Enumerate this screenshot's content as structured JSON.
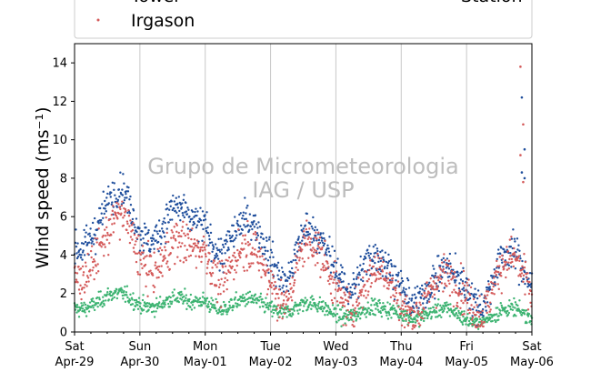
{
  "chart_data": {
    "type": "scatter",
    "title": "",
    "xlabel": "",
    "ylabel": "Wind speed (ms⁻¹)",
    "ylim": [
      0,
      15
    ],
    "xlim": [
      "2017-04-29",
      "2017-05-06"
    ],
    "x_tick_labels": [
      {
        "day": "Sat",
        "date": "Apr-29"
      },
      {
        "day": "Sun",
        "date": "Apr-30"
      },
      {
        "day": "Mon",
        "date": "May-01"
      },
      {
        "day": "Tue",
        "date": "May-02"
      },
      {
        "day": "Wed",
        "date": "May-03"
      },
      {
        "day": "Thu",
        "date": "May-04"
      },
      {
        "day": "Fri",
        "date": "May-05"
      },
      {
        "day": "Sat",
        "date": "May-06"
      }
    ],
    "y_ticks": [
      0,
      2,
      4,
      6,
      8,
      10,
      12,
      14
    ],
    "grid": "vertical",
    "legend_placement": "top",
    "watermark": [
      "Grupo de Micrometeorologia",
      "IAG / USP"
    ],
    "series": [
      {
        "name": "Tower",
        "color": "#1f4e9c",
        "x": [
          "2017-04-29",
          "2017-04-29T06",
          "2017-04-29T12",
          "2017-04-29T18",
          "2017-04-30",
          "2017-04-30T06",
          "2017-04-30T12",
          "2017-04-30T18",
          "2017-05-01",
          "2017-05-01T06",
          "2017-05-01T12",
          "2017-05-01T18",
          "2017-05-02",
          "2017-05-02T06",
          "2017-05-02T12",
          "2017-05-02T18",
          "2017-05-03",
          "2017-05-03T06",
          "2017-05-03T12",
          "2017-05-03T18",
          "2017-05-04",
          "2017-05-04T06",
          "2017-05-04T12",
          "2017-05-04T18",
          "2017-05-05",
          "2017-05-05T06",
          "2017-05-05T12",
          "2017-05-05T18",
          "2017-05-06"
        ],
        "values": [
          5.0,
          5.5,
          6.0,
          6.8,
          5.8,
          5.5,
          5.8,
          5.2,
          6.2,
          4.6,
          4.8,
          5.0,
          4.6,
          3.2,
          4.6,
          4.2,
          4.0,
          2.8,
          3.2,
          3.0,
          3.0,
          2.2,
          2.0,
          2.6,
          3.0,
          2.0,
          3.0,
          3.5,
          3.0
        ]
      },
      {
        "name": "Irgason",
        "color": "#d45a5a",
        "x": [
          "2017-04-29",
          "2017-04-29T06",
          "2017-04-29T12",
          "2017-04-29T18",
          "2017-04-30",
          "2017-04-30T06",
          "2017-04-30T12",
          "2017-04-30T18",
          "2017-05-01",
          "2017-05-01T06",
          "2017-05-01T12",
          "2017-05-01T18",
          "2017-05-02",
          "2017-05-02T06",
          "2017-05-02T12",
          "2017-05-02T18",
          "2017-05-03",
          "2017-05-03T06",
          "2017-05-03T12",
          "2017-05-03T18",
          "2017-05-04",
          "2017-05-04T06",
          "2017-05-04T12",
          "2017-05-04T18",
          "2017-05-05",
          "2017-05-05T06",
          "2017-05-05T12",
          "2017-05-05T18",
          "2017-05-06"
        ],
        "values": [
          3.5,
          4.0,
          4.5,
          5.5,
          4.5,
          3.8,
          4.0,
          3.8,
          5.0,
          3.0,
          3.5,
          3.6,
          3.4,
          2.0,
          4.0,
          3.5,
          3.0,
          1.8,
          2.2,
          2.5,
          2.0,
          1.6,
          1.8,
          2.2,
          2.6,
          1.5,
          2.6,
          3.2,
          2.5
        ]
      },
      {
        "name": "Station",
        "color": "#3cb371",
        "x": [
          "2017-04-29",
          "2017-04-29T06",
          "2017-04-29T12",
          "2017-04-29T18",
          "2017-04-30",
          "2017-04-30T06",
          "2017-04-30T12",
          "2017-04-30T18",
          "2017-05-01",
          "2017-05-01T06",
          "2017-05-01T12",
          "2017-05-01T18",
          "2017-05-02",
          "2017-05-02T06",
          "2017-05-02T12",
          "2017-05-02T18",
          "2017-05-03",
          "2017-05-03T06",
          "2017-05-03T12",
          "2017-05-03T18",
          "2017-05-04",
          "2017-05-04T06",
          "2017-05-04T12",
          "2017-05-04T18",
          "2017-05-05",
          "2017-05-05T06",
          "2017-05-05T12",
          "2017-05-05T18",
          "2017-05-06"
        ],
        "values": [
          1.4,
          1.5,
          1.7,
          1.8,
          1.6,
          1.5,
          1.6,
          1.4,
          1.8,
          1.3,
          1.4,
          1.5,
          1.4,
          1.2,
          1.3,
          1.2,
          1.1,
          1.0,
          1.1,
          1.0,
          1.2,
          0.9,
          0.9,
          1.0,
          0.8,
          0.7,
          0.9,
          1.0,
          0.9
        ]
      }
    ],
    "legend_labels_visible": [
      "Tower",
      "Irgason",
      "Station"
    ]
  }
}
